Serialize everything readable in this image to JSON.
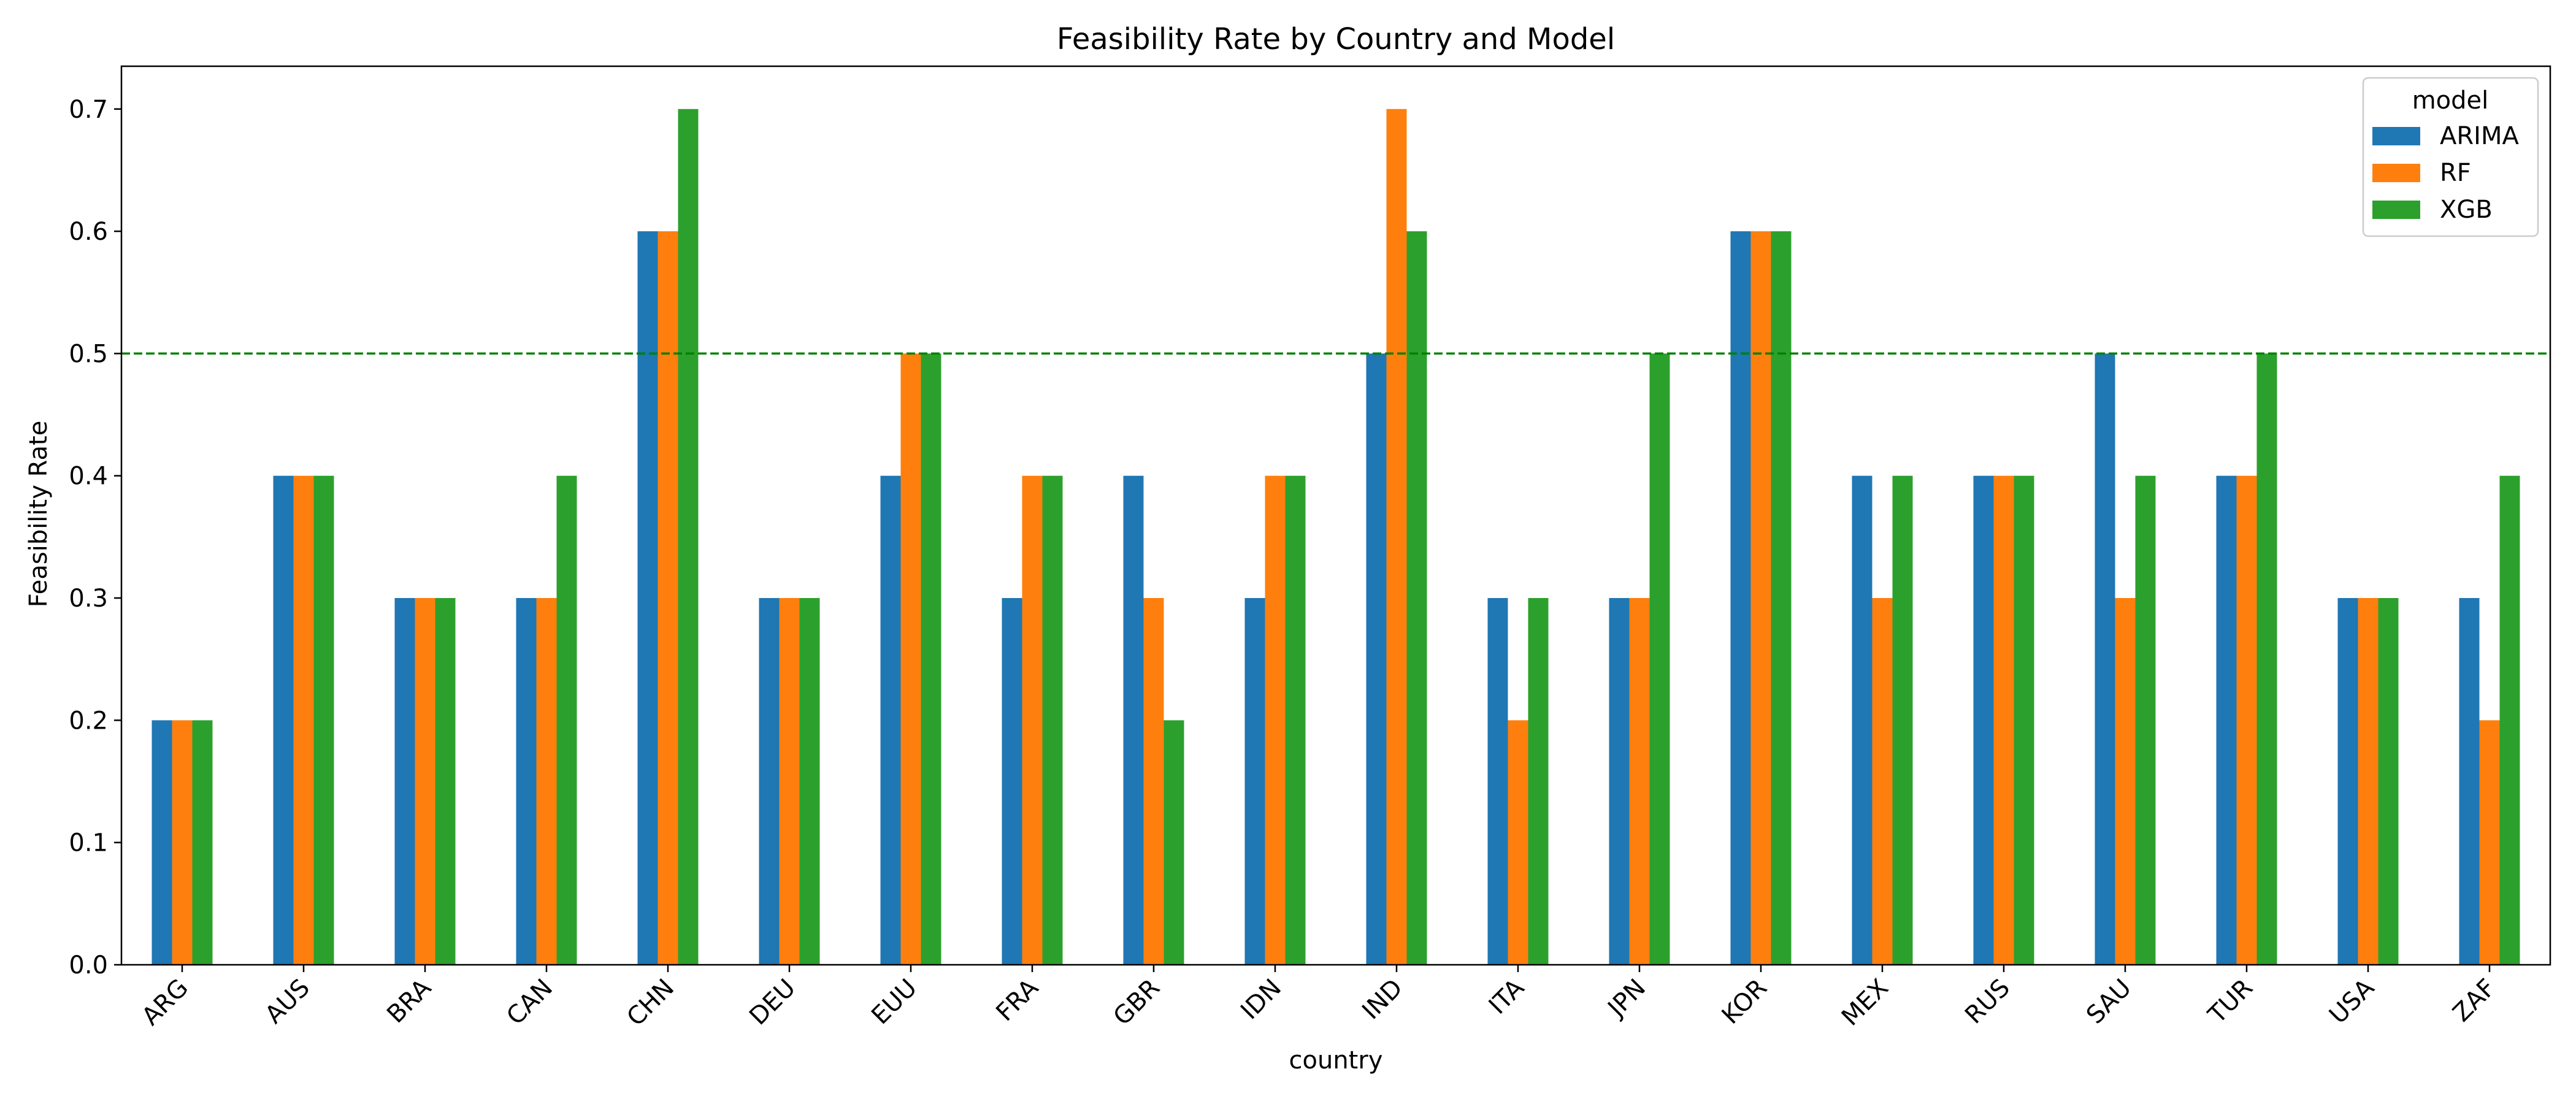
{
  "chart_data": {
    "type": "bar",
    "title": "Feasibility Rate by Country and Model",
    "xlabel": "country",
    "ylabel": "Feasibility Rate",
    "ylim": [
      0,
      0.735
    ],
    "yticks": [
      0.0,
      0.1,
      0.2,
      0.3,
      0.4,
      0.5,
      0.6,
      0.7
    ],
    "ytick_labels": [
      "0.0",
      "0.1",
      "0.2",
      "0.3",
      "0.4",
      "0.5",
      "0.6",
      "0.7"
    ],
    "categories": [
      "ARG",
      "AUS",
      "BRA",
      "CAN",
      "CHN",
      "DEU",
      "EUU",
      "FRA",
      "GBR",
      "IDN",
      "IND",
      "ITA",
      "JPN",
      "KOR",
      "MEX",
      "RUS",
      "SAU",
      "TUR",
      "USA",
      "ZAF"
    ],
    "series": [
      {
        "name": "ARIMA",
        "color": "#1f77b4",
        "values": [
          0.2,
          0.4,
          0.3,
          0.3,
          0.6,
          0.3,
          0.4,
          0.3,
          0.4,
          0.3,
          0.5,
          0.3,
          0.3,
          0.6,
          0.4,
          0.4,
          0.5,
          0.4,
          0.3,
          0.3
        ]
      },
      {
        "name": "RF",
        "color": "#ff7f0e",
        "values": [
          0.2,
          0.4,
          0.3,
          0.3,
          0.6,
          0.3,
          0.5,
          0.4,
          0.3,
          0.4,
          0.7,
          0.2,
          0.3,
          0.6,
          0.3,
          0.4,
          0.3,
          0.4,
          0.3,
          0.2
        ]
      },
      {
        "name": "XGB",
        "color": "#2ca02c",
        "values": [
          0.2,
          0.4,
          0.3,
          0.4,
          0.7,
          0.3,
          0.5,
          0.4,
          0.2,
          0.4,
          0.6,
          0.3,
          0.5,
          0.6,
          0.4,
          0.4,
          0.4,
          0.5,
          0.3,
          0.4
        ]
      }
    ],
    "reference_line": {
      "value": 0.5,
      "color": "#008000",
      "style": "dashed"
    },
    "legend": {
      "title": "model",
      "placement": "top-right"
    },
    "grid": false
  }
}
